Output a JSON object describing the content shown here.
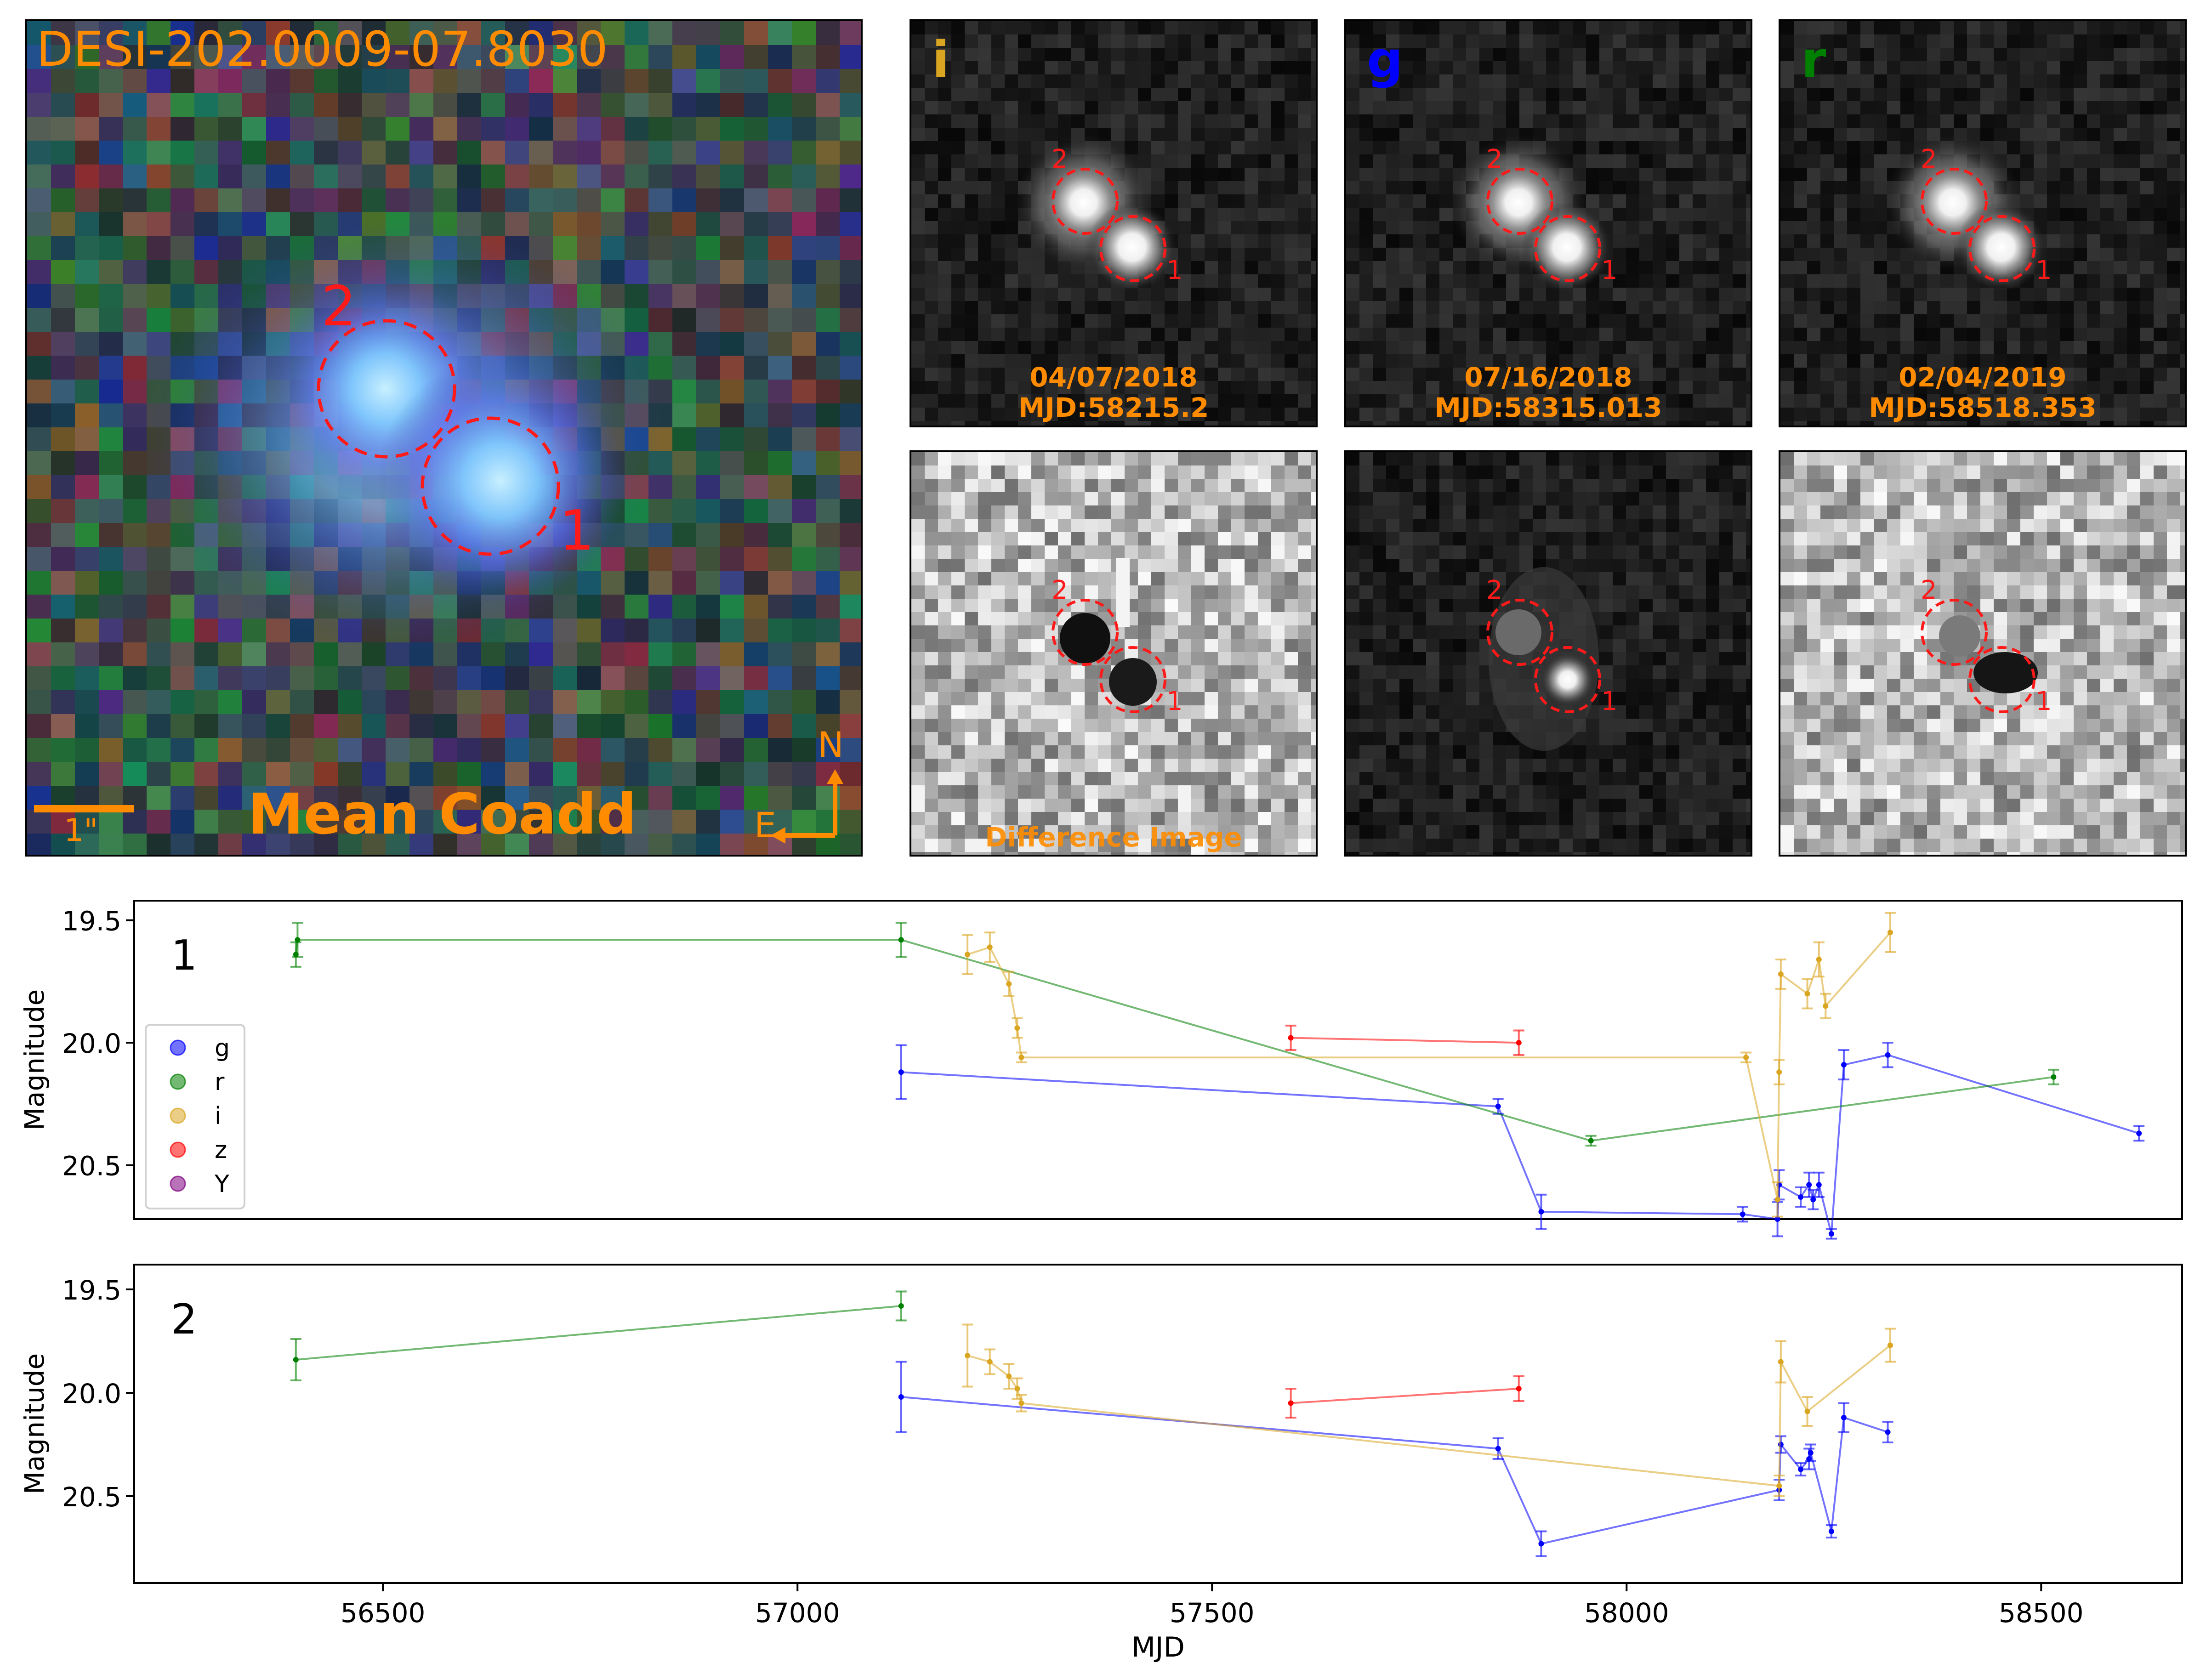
{
  "coadd": {
    "title": "DESI-202.0009-07.8030",
    "label": "Mean Coadd",
    "scale_label": "1\"",
    "compass_n": "N",
    "compass_e": "E",
    "marker_1": "1",
    "marker_2": "2"
  },
  "cutouts": [
    {
      "band": "i",
      "band_color": "#daa520",
      "date": "04/07/2018",
      "mjd_label": "MJD:58215.2"
    },
    {
      "band": "g",
      "band_color": "#0000ff",
      "date": "07/16/2018",
      "mjd_label": "MJD:58315.013"
    },
    {
      "band": "r",
      "band_color": "#008000",
      "date": "02/04/2019",
      "mjd_label": "MJD:58518.353"
    }
  ],
  "difference": {
    "label": "Difference Image"
  },
  "markers": {
    "one": "1",
    "two": "2"
  },
  "colors": {
    "accent": "#ff8c00",
    "circle": "#ff1a1a"
  },
  "chart_data": [
    {
      "type": "line",
      "panel_label": "1",
      "xlabel": "MJD",
      "ylabel": "Magnitude",
      "xlim": [
        56200,
        58670
      ],
      "ylim": [
        20.72,
        19.42
      ],
      "yticks": [
        19.5,
        20.0,
        20.5
      ],
      "yticklabels": [
        "19.5",
        "20.0",
        "20.5"
      ],
      "legend": [
        "g",
        "r",
        "i",
        "z",
        "Y"
      ],
      "legend_colors": [
        "#0000ff",
        "#008000",
        "#daa520",
        "#ff0000",
        "#800080"
      ],
      "series": [
        {
          "name": "g",
          "color": "#0000ff",
          "x": [
            57125,
            57845,
            57897,
            58140,
            58182,
            58184,
            58210,
            58220,
            58225,
            58232,
            58247,
            58262,
            58315,
            58618
          ],
          "y": [
            20.12,
            20.26,
            20.69,
            20.7,
            20.72,
            20.58,
            20.63,
            20.58,
            20.64,
            20.58,
            20.78,
            20.09,
            20.05,
            20.37
          ],
          "err": [
            0.11,
            0.03,
            0.07,
            0.03,
            0.07,
            0.06,
            0.04,
            0.05,
            0.04,
            0.05,
            0.02,
            0.06,
            0.05,
            0.03
          ]
        },
        {
          "name": "r",
          "color": "#008000",
          "x": [
            56395,
            56397,
            57125,
            57957,
            58515
          ],
          "y": [
            19.64,
            19.58,
            19.58,
            20.4,
            20.14
          ],
          "err": [
            0.05,
            0.07,
            0.07,
            0.02,
            0.03
          ]
        },
        {
          "name": "i",
          "color": "#daa520",
          "x": [
            57205,
            57232,
            57255,
            57265,
            57270,
            58144,
            58182,
            58184,
            58186,
            58218,
            58232,
            58240,
            58318
          ],
          "y": [
            19.64,
            19.61,
            19.76,
            19.94,
            20.06,
            20.06,
            20.64,
            20.12,
            19.72,
            19.8,
            19.66,
            19.85,
            19.55
          ],
          "err": [
            0.08,
            0.06,
            0.05,
            0.04,
            0.02,
            0.02,
            0.07,
            0.05,
            0.06,
            0.06,
            0.07,
            0.05,
            0.08
          ]
        },
        {
          "name": "z",
          "color": "#ff0000",
          "x": [
            57595,
            57870
          ],
          "y": [
            19.98,
            20.0
          ],
          "err": [
            0.05,
            0.05
          ]
        }
      ]
    },
    {
      "type": "line",
      "panel_label": "2",
      "xlabel": "MJD",
      "ylabel": "Magnitude",
      "xlim": [
        56200,
        58670
      ],
      "ylim": [
        20.92,
        19.38
      ],
      "yticks": [
        19.5,
        20.0,
        20.5
      ],
      "yticklabels": [
        "19.5",
        "20.0",
        "20.5"
      ],
      "xticks": [
        56500,
        57000,
        57500,
        58000,
        58500
      ],
      "xticklabels": [
        "56500",
        "57000",
        "57500",
        "58000",
        "58500"
      ],
      "series": [
        {
          "name": "g",
          "color": "#0000ff",
          "x": [
            57125,
            57845,
            57897,
            58184,
            58186,
            58210,
            58220,
            58222,
            58247,
            58262,
            58315
          ],
          "y": [
            20.02,
            20.27,
            20.73,
            20.47,
            20.25,
            20.37,
            20.32,
            20.29,
            20.67,
            20.12,
            20.19
          ],
          "err": [
            0.17,
            0.05,
            0.06,
            0.05,
            0.04,
            0.03,
            0.05,
            0.04,
            0.03,
            0.07,
            0.05
          ]
        },
        {
          "name": "r",
          "color": "#008000",
          "x": [
            56395,
            57125
          ],
          "y": [
            19.84,
            19.58
          ],
          "err": [
            0.1,
            0.07
          ]
        },
        {
          "name": "i",
          "color": "#daa520",
          "x": [
            57205,
            57232,
            57255,
            57265,
            57270,
            58184,
            58186,
            58218,
            58318
          ],
          "y": [
            19.82,
            19.85,
            19.92,
            19.98,
            20.05,
            20.45,
            19.85,
            20.09,
            19.77
          ],
          "err": [
            0.15,
            0.06,
            0.06,
            0.05,
            0.04,
            0.05,
            0.1,
            0.07,
            0.08
          ]
        },
        {
          "name": "z",
          "color": "#ff0000",
          "x": [
            57595,
            57870
          ],
          "y": [
            20.05,
            19.98
          ],
          "err": [
            0.07,
            0.06
          ]
        }
      ]
    }
  ]
}
